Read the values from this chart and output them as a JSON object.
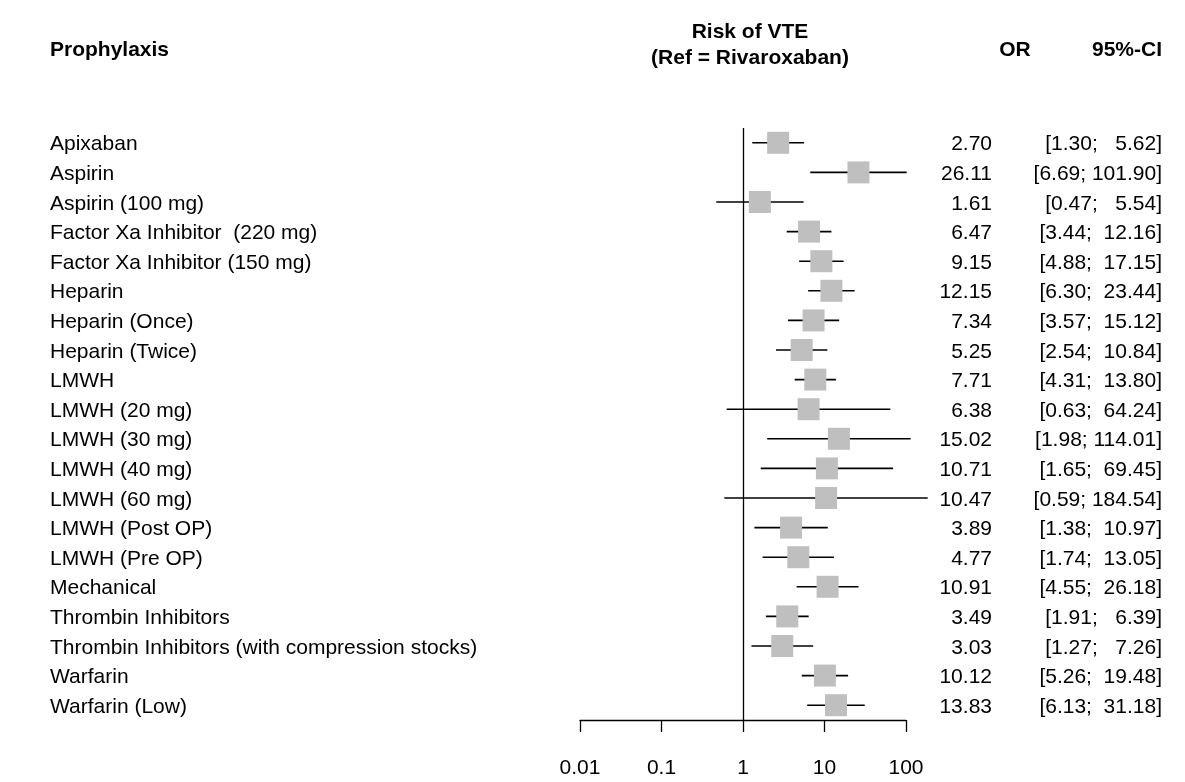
{
  "chart_data": {
    "type": "scatter",
    "orientation": "horizontal",
    "title": "Risk of VTE\n(Ref = Rivaroxaban)",
    "ylabel": "Prophylaxis",
    "annotations": [
      "OR",
      "95%-CI"
    ],
    "categories": [
      "Apixaban",
      "Aspirin",
      "Aspirin (100 mg)",
      "Factor Xa Inhibitor  (220 mg)",
      "Factor Xa Inhibitor (150 mg)",
      "Heparin",
      "Heparin (Once)",
      "Heparin (Twice)",
      "LMWH",
      "LMWH (20 mg)",
      "LMWH (30 mg)",
      "LMWH (40 mg)",
      "LMWH (60 mg)",
      "LMWH (Post OP)",
      "LMWH (Pre OP)",
      "Mechanical",
      "Thrombin Inhibitors",
      "Thrombin Inhibitors (with compression stocks)",
      "Warfarin",
      "Warfarin (Low)"
    ],
    "values": [
      2.7,
      26.11,
      1.61,
      6.47,
      9.15,
      12.15,
      7.34,
      5.25,
      7.71,
      6.38,
      15.02,
      10.71,
      10.47,
      3.89,
      4.77,
      10.91,
      3.49,
      3.03,
      10.12,
      13.83
    ],
    "errors": [
      [
        1.3,
        5.62
      ],
      [
        6.69,
        101.9
      ],
      [
        0.47,
        5.54
      ],
      [
        3.44,
        12.16
      ],
      [
        4.88,
        17.15
      ],
      [
        6.3,
        23.44
      ],
      [
        3.57,
        15.12
      ],
      [
        2.54,
        10.84
      ],
      [
        4.31,
        13.8
      ],
      [
        0.63,
        64.24
      ],
      [
        1.98,
        114.01
      ],
      [
        1.65,
        69.45
      ],
      [
        0.59,
        184.54
      ],
      [
        1.38,
        10.97
      ],
      [
        1.74,
        13.05
      ],
      [
        4.55,
        26.18
      ],
      [
        1.91,
        6.39
      ],
      [
        1.27,
        7.26
      ],
      [
        5.26,
        19.48
      ],
      [
        6.13,
        31.18
      ]
    ],
    "value_labels": [
      "2.70 [1.30;   5.62]",
      "26.11 [6.69; 101.90]",
      "1.61 [0.47;   5.54]",
      "6.47 [3.44;  12.16]",
      "9.15 [4.88;  17.15]",
      "12.15 [6.30;  23.44]",
      "7.34 [3.57;  15.12]",
      "5.25 [2.54;  10.84]",
      "7.71 [4.31;  13.80]",
      "6.38 [0.63;  64.24]",
      "15.02 [1.98; 114.01]",
      "10.71 [1.65;  69.45]",
      "10.47 [0.59; 184.54]",
      "3.89 [1.38;  10.97]",
      "4.77 [1.74;  13.05]",
      "10.91 [4.55;  26.18]",
      "3.49 [1.91;   6.39]",
      "3.03 [1.27;   7.26]",
      "10.12 [5.26;  19.48]",
      "13.83 [6.13;  31.18]"
    ],
    "color": "#bfbfbf",
    "marker": "square",
    "log": "x",
    "xlim": [
      0.01,
      100
    ],
    "xticks": [
      0.01,
      0.1,
      1,
      10,
      100
    ],
    "ref_lines": [
      {
        "axis": "x",
        "value": 1,
        "color": "#000000"
      }
    ],
    "grid": false
  }
}
